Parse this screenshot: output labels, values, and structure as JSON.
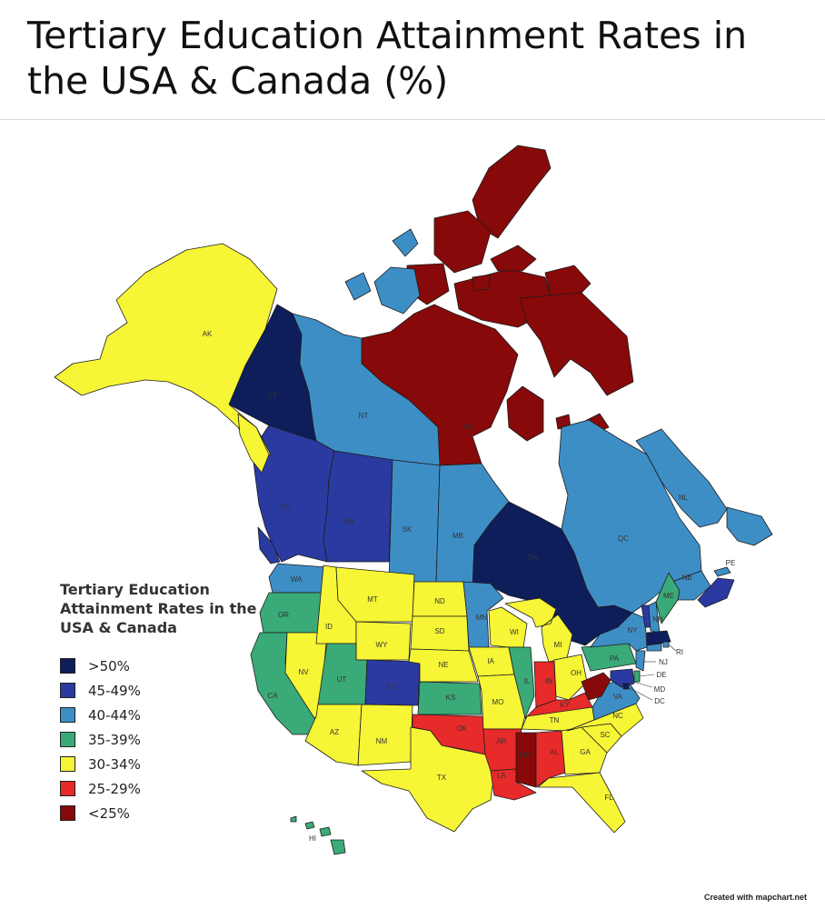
{
  "page": {
    "title": "Tertiary Education Attainment Rates in the USA & Canada (%)",
    "credit": "Created with mapchart.net"
  },
  "legend": {
    "title": "Tertiary Education Attainment Rates in the USA & Canada",
    "items": [
      {
        "label": ">50%",
        "color": "#0e1e5a"
      },
      {
        "label": "45-49%",
        "color": "#2b3aa0"
      },
      {
        "label": "40-44%",
        "color": "#3e8ec6"
      },
      {
        "label": "35-39%",
        "color": "#3aaa78"
      },
      {
        "label": "30-34%",
        "color": "#f6f536"
      },
      {
        "label": "25-29%",
        "color": "#e72a2a"
      },
      {
        "label": "<25%",
        "color": "#870909"
      }
    ]
  },
  "regions": {
    "AK": {
      "label": "AK",
      "color": "#f6f536"
    },
    "YT": {
      "label": "YT",
      "color": "#0e1e5a"
    },
    "NT": {
      "label": "NT",
      "color": "#3e8ec6"
    },
    "NU": {
      "label": "NU",
      "color": "#870909"
    },
    "BC": {
      "label": "BC",
      "color": "#2b3aa0"
    },
    "AB": {
      "label": "AB",
      "color": "#2b3aa0"
    },
    "SK": {
      "label": "SK",
      "color": "#3e8ec6"
    },
    "MB": {
      "label": "MB",
      "color": "#3e8ec6"
    },
    "ON": {
      "label": "ON",
      "color": "#0e1e5a"
    },
    "QC": {
      "label": "QC",
      "color": "#3e8ec6"
    },
    "NL": {
      "label": "NL",
      "color": "#3e8ec6"
    },
    "NB": {
      "label": "NB",
      "color": "#3e8ec6"
    },
    "NS": {
      "label": "",
      "color": "#2b3aa0"
    },
    "PE": {
      "label": "PE",
      "color": "#3e8ec6"
    },
    "WA": {
      "label": "WA",
      "color": "#3e8ec6"
    },
    "OR": {
      "label": "OR",
      "color": "#3aaa78"
    },
    "CA": {
      "label": "CA",
      "color": "#3aaa78"
    },
    "NV": {
      "label": "NV",
      "color": "#f6f536"
    },
    "ID": {
      "label": "ID",
      "color": "#f6f536"
    },
    "MT": {
      "label": "MT",
      "color": "#f6f536"
    },
    "WY": {
      "label": "WY",
      "color": "#f6f536"
    },
    "UT": {
      "label": "UT",
      "color": "#3aaa78"
    },
    "CO": {
      "label": "CO",
      "color": "#2b3aa0"
    },
    "AZ": {
      "label": "AZ",
      "color": "#f6f536"
    },
    "NM": {
      "label": "NM",
      "color": "#f6f536"
    },
    "ND": {
      "label": "ND",
      "color": "#f6f536"
    },
    "SD": {
      "label": "SD",
      "color": "#f6f536"
    },
    "NE": {
      "label": "NE",
      "color": "#f6f536"
    },
    "KS": {
      "label": "KS",
      "color": "#3aaa78"
    },
    "OK": {
      "label": "OK",
      "color": "#e72a2a"
    },
    "TX": {
      "label": "TX",
      "color": "#f6f536"
    },
    "MN": {
      "label": "MN",
      "color": "#3e8ec6"
    },
    "IA": {
      "label": "IA",
      "color": "#f6f536"
    },
    "MO": {
      "label": "MO",
      "color": "#f6f536"
    },
    "AR": {
      "label": "AR",
      "color": "#e72a2a"
    },
    "LA": {
      "label": "LA",
      "color": "#e72a2a"
    },
    "WI": {
      "label": "WI",
      "color": "#f6f536"
    },
    "IL": {
      "label": "IL",
      "color": "#3aaa78"
    },
    "MI": {
      "label": "MI",
      "color": "#f6f536"
    },
    "IN": {
      "label": "IN",
      "color": "#e72a2a"
    },
    "OH": {
      "label": "OH",
      "color": "#f6f536"
    },
    "KY": {
      "label": "KY",
      "color": "#e72a2a"
    },
    "TN": {
      "label": "TN",
      "color": "#f6f536"
    },
    "MS": {
      "label": "MS",
      "color": "#870909"
    },
    "AL": {
      "label": "AL",
      "color": "#e72a2a"
    },
    "GA": {
      "label": "GA",
      "color": "#f6f536"
    },
    "FL": {
      "label": "FL",
      "color": "#f6f536"
    },
    "SC": {
      "label": "SC",
      "color": "#f6f536"
    },
    "NC": {
      "label": "NC",
      "color": "#f6f536"
    },
    "VA": {
      "label": "VA",
      "color": "#3e8ec6"
    },
    "WV": {
      "label": "WV",
      "color": "#870909"
    },
    "PA": {
      "label": "PA",
      "color": "#3aaa78"
    },
    "NY": {
      "label": "NY",
      "color": "#3e8ec6"
    },
    "VT": {
      "label": "",
      "color": "#2b3aa0"
    },
    "NH": {
      "label": "NH",
      "color": "#3e8ec6"
    },
    "ME": {
      "label": "ME",
      "color": "#3aaa78"
    },
    "MA": {
      "label": "",
      "color": "#0e1e5a"
    },
    "RI": {
      "label": "RI",
      "color": "#3e8ec6"
    },
    "CT": {
      "label": "",
      "color": "#3e8ec6"
    },
    "NJ": {
      "label": "NJ",
      "color": "#3e8ec6"
    },
    "DE": {
      "label": "DE",
      "color": "#3aaa78"
    },
    "MD": {
      "label": "MD",
      "color": "#2b3aa0"
    },
    "DC": {
      "label": "DC",
      "color": "#0e1e5a"
    },
    "HI": {
      "label": "HI",
      "color": "#3aaa78"
    }
  }
}
